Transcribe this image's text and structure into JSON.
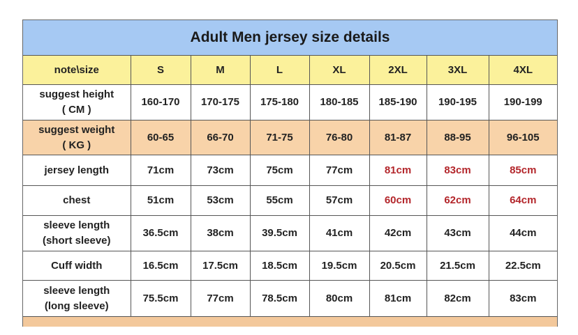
{
  "title": "Adult Men jersey size details",
  "corner_label": "note\\size",
  "sizes": [
    "S",
    "M",
    "L",
    "XL",
    "2XL",
    "3XL",
    "4XL"
  ],
  "rows": [
    {
      "label1": "suggest height",
      "label2": "( CM )",
      "values": [
        "160-170",
        "170-175",
        "175-180",
        "180-185",
        "185-190",
        "190-195",
        "190-199"
      ],
      "highlight": "none",
      "red_from": 99,
      "height": 51
    },
    {
      "label1": "suggest weight",
      "label2": "( KG )",
      "values": [
        "60-65",
        "66-70",
        "71-75",
        "76-80",
        "81-87",
        "88-95",
        "96-105"
      ],
      "highlight": "orange",
      "red_from": 99,
      "height": 50
    },
    {
      "label1": "jersey length",
      "label2": "",
      "values": [
        "71cm",
        "73cm",
        "75cm",
        "77cm",
        "81cm",
        "83cm",
        "85cm"
      ],
      "highlight": "none",
      "red_from": 4,
      "height": 44
    },
    {
      "label1": "chest",
      "label2": "",
      "values": [
        "51cm",
        "53cm",
        "55cm",
        "57cm",
        "60cm",
        "62cm",
        "64cm"
      ],
      "highlight": "none",
      "red_from": 4,
      "height": 43
    },
    {
      "label1": "sleeve length",
      "label2": "(short sleeve)",
      "values": [
        "36.5cm",
        "38cm",
        "39.5cm",
        "41cm",
        "42cm",
        "43cm",
        "44cm"
      ],
      "highlight": "none",
      "red_from": 99,
      "height": 51
    },
    {
      "label1": "Cuff width",
      "label2": "",
      "values": [
        "16.5cm",
        "17.5cm",
        "18.5cm",
        "19.5cm",
        "20.5cm",
        "21.5cm",
        "22.5cm"
      ],
      "highlight": "none",
      "red_from": 99,
      "height": 42
    },
    {
      "label1": "sleeve length",
      "label2": "(long sleeve)",
      "values": [
        "75.5cm",
        "77cm",
        "78.5cm",
        "80cm",
        "81cm",
        "82cm",
        "83cm"
      ],
      "highlight": "none",
      "red_from": 99,
      "height": 52
    }
  ],
  "colors": {
    "title_bg": "#a6c9f3",
    "header_bg": "#fbf19b",
    "weight_bg": "#f8d3a9",
    "red_text": "#b3262b"
  }
}
